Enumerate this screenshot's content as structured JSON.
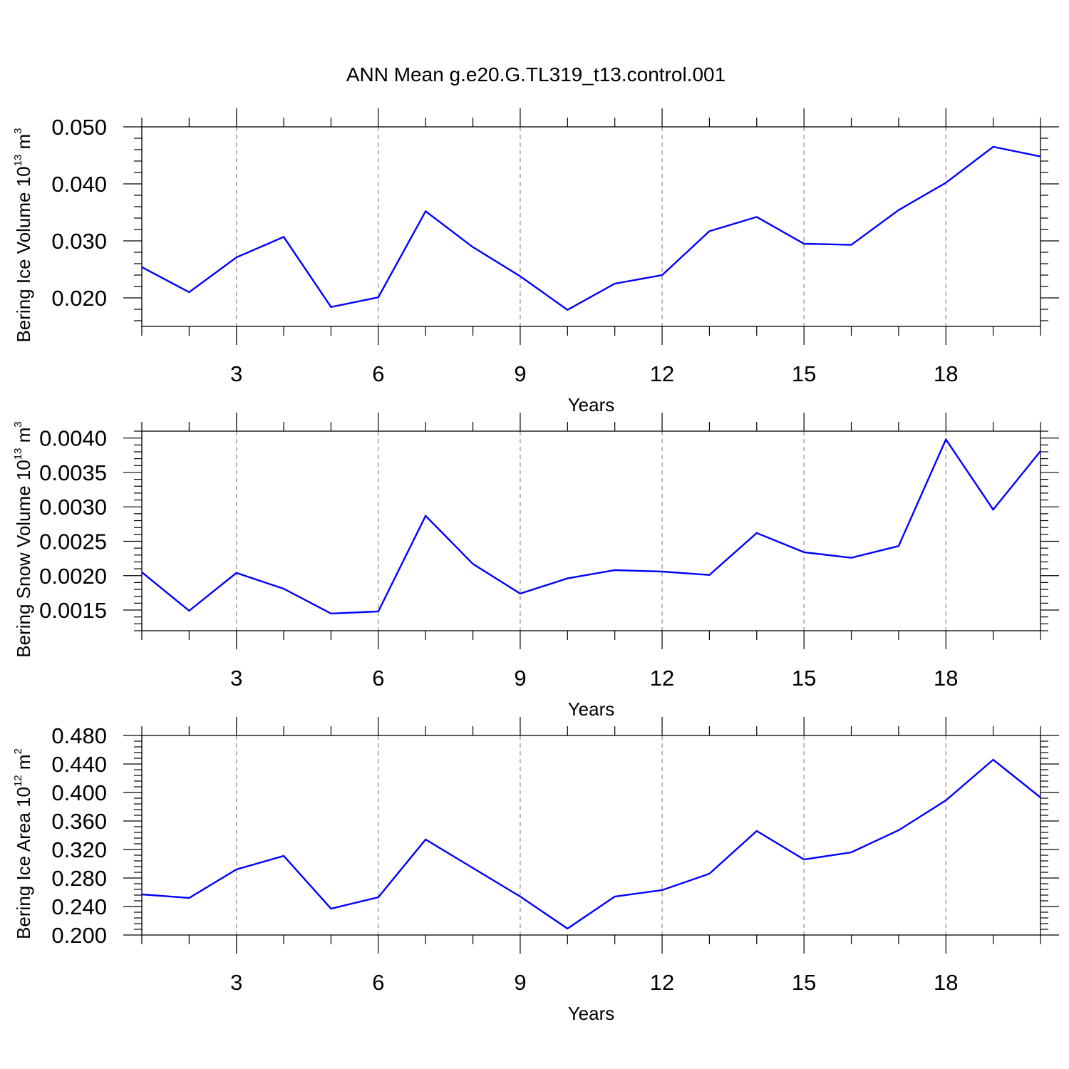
{
  "title": "ANN Mean g.e20.G.TL319_t13.control.001",
  "chart_data": [
    {
      "type": "line",
      "xlabel": "Years",
      "ylabel": {
        "text": "Bering Ice Volume 10",
        "sup1": "13",
        "mid": " m",
        "sup2": "3"
      },
      "xlim": [
        1,
        20
      ],
      "ylim": [
        0.015,
        0.05
      ],
      "xticks": [
        3,
        6,
        9,
        12,
        15,
        18
      ],
      "xtick_labels": [
        "3",
        "6",
        "9",
        "12",
        "15",
        "18"
      ],
      "yticks": [
        0.02,
        0.03,
        0.04,
        0.05
      ],
      "ytick_labels": [
        "0.020",
        "0.030",
        "0.040",
        "0.050"
      ],
      "ymajor_step": 0.01,
      "yminor_step": 0.002,
      "grid": "vertical dashed at major x ticks",
      "color": "#0000ff",
      "x": [
        1,
        2,
        3,
        4,
        5,
        6,
        7,
        8,
        9,
        10,
        11,
        12,
        13,
        14,
        15,
        16,
        17,
        18,
        19,
        20
      ],
      "y": [
        0.0254,
        0.021,
        0.0271,
        0.0307,
        0.0184,
        0.0201,
        0.0352,
        0.0289,
        0.0238,
        0.0179,
        0.0225,
        0.024,
        0.0317,
        0.0342,
        0.0295,
        0.0293,
        0.0354,
        0.0402,
        0.0465,
        0.0448
      ]
    },
    {
      "type": "line",
      "xlabel": "Years",
      "ylabel": {
        "text": "Bering Snow Volume 10",
        "sup1": "13",
        "mid": " m",
        "sup2": "3"
      },
      "xlim": [
        1,
        20
      ],
      "ylim": [
        0.0012,
        0.0041
      ],
      "xticks": [
        3,
        6,
        9,
        12,
        15,
        18
      ],
      "xtick_labels": [
        "3",
        "6",
        "9",
        "12",
        "15",
        "18"
      ],
      "yticks": [
        0.0015,
        0.002,
        0.0025,
        0.003,
        0.0035,
        0.004
      ],
      "ytick_labels": [
        "0.0015",
        "0.0020",
        "0.0025",
        "0.0030",
        "0.0035",
        "0.0040"
      ],
      "ymajor_step": 0.0005,
      "yminor_step": 0.0001,
      "grid": "vertical dashed at major x ticks",
      "color": "#0000ff",
      "x": [
        1,
        2,
        3,
        4,
        5,
        6,
        7,
        8,
        9,
        10,
        11,
        12,
        13,
        14,
        15,
        16,
        17,
        18,
        19,
        20
      ],
      "y": [
        0.00205,
        0.00149,
        0.00204,
        0.00181,
        0.00145,
        0.00148,
        0.00287,
        0.00217,
        0.00174,
        0.00196,
        0.00208,
        0.00206,
        0.00201,
        0.00262,
        0.00234,
        0.00226,
        0.00243,
        0.00398,
        0.00296,
        0.00381
      ]
    },
    {
      "type": "line",
      "xlabel": "Years",
      "ylabel": {
        "text": "Bering Ice Area 10",
        "sup1": "12",
        "mid": " m",
        "sup2": "2"
      },
      "xlim": [
        1,
        20
      ],
      "ylim": [
        0.2,
        0.48
      ],
      "xticks": [
        3,
        6,
        9,
        12,
        15,
        18
      ],
      "xtick_labels": [
        "3",
        "6",
        "9",
        "12",
        "15",
        "18"
      ],
      "yticks": [
        0.2,
        0.24,
        0.28,
        0.32,
        0.36,
        0.4,
        0.44,
        0.48
      ],
      "ytick_labels": [
        "0.200",
        "0.240",
        "0.280",
        "0.320",
        "0.360",
        "0.400",
        "0.440",
        "0.480"
      ],
      "ymajor_step": 0.04,
      "yminor_step": 0.008,
      "grid": "vertical dashed at major x ticks",
      "color": "#0000ff",
      "x": [
        1,
        2,
        3,
        4,
        5,
        6,
        7,
        8,
        9,
        10,
        11,
        12,
        13,
        14,
        15,
        16,
        17,
        18,
        19,
        20
      ],
      "y": [
        0.257,
        0.252,
        0.292,
        0.311,
        0.237,
        0.253,
        0.334,
        0.294,
        0.254,
        0.209,
        0.254,
        0.263,
        0.286,
        0.346,
        0.306,
        0.316,
        0.347,
        0.389,
        0.446,
        0.393
      ]
    }
  ]
}
